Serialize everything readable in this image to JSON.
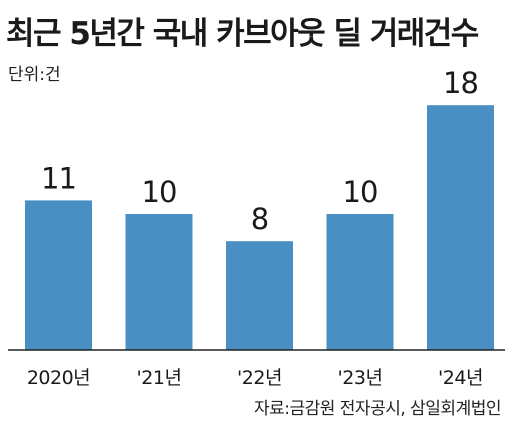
{
  "chart_data": {
    "type": "bar",
    "title": "최근 5년간 국내 카브아웃 딜 거래건수",
    "unit_label": "단위:건",
    "source": "자료:금감원 전자공시, 삼일회계법인",
    "categories": [
      "2020년",
      "'21년",
      "'22년",
      "'23년",
      "'24년"
    ],
    "values": [
      11,
      10,
      8,
      10,
      18
    ],
    "data_labels": [
      "11",
      "10",
      "8",
      "10",
      "18"
    ],
    "bar_color": "#4a8fc4",
    "axis_color": "#222222",
    "grid": false,
    "legend": "none"
  }
}
